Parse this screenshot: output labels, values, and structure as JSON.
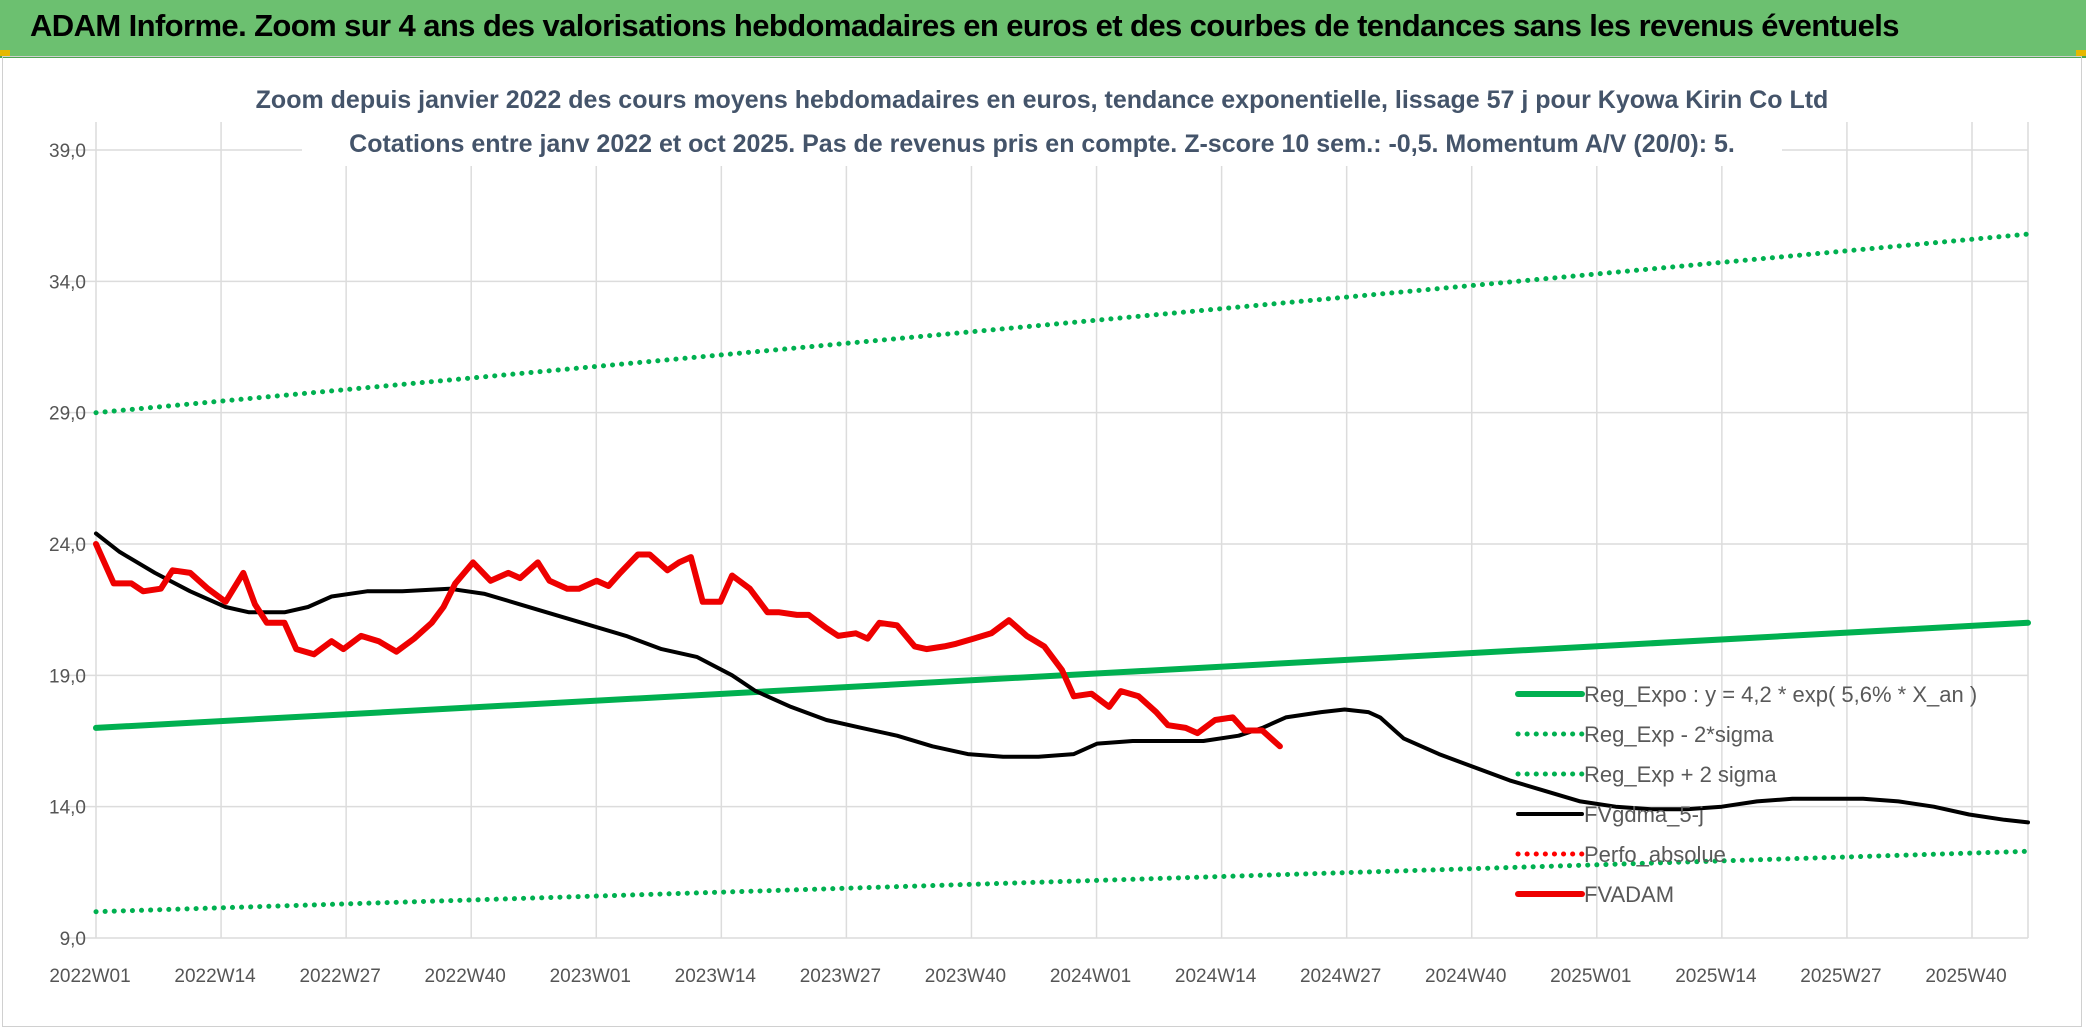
{
  "banner": {
    "title": "ADAM Informe. Zoom sur 4 ans des valorisations hebdomadaires en euros et des courbes de tendances sans les revenus éventuels"
  },
  "chart_data": {
    "type": "line",
    "title": "Zoom depuis janvier 2022 des cours moyens hebdomadaires en euros, tendance exponentielle, lissage 57 j pour Kyowa Kirin Co Ltd",
    "subtitle": "Cotations entre janv 2022 et oct 2025. Pas de revenus pris en compte. Z-score 10 sem.: -0,5. Momentum A/V (20/0): 5.",
    "xlabel": "",
    "ylabel": "",
    "ylim": [
      9.0,
      39.0
    ],
    "yticks": [
      "9,0",
      "14,0",
      "19,0",
      "24,0",
      "29,0",
      "34,0",
      "39,0"
    ],
    "x_tick_labels": [
      "2022W01",
      "2022W14",
      "2022W27",
      "2022W40",
      "2023W01",
      "2023W14",
      "2023W27",
      "2023W40",
      "2024W01",
      "2024W14",
      "2024W27",
      "2024W40",
      "2025W01",
      "2025W14",
      "2025W27",
      "2025W40"
    ],
    "x_tick_step_weeks": 13,
    "weeks_total": 202,
    "grid": true,
    "legend_position": "right",
    "series": [
      {
        "name": "Reg_Expo : y = 4,2 * exp( 5,6% *  X_an )",
        "color": "#00b050",
        "style": "solid",
        "points": [
          [
            0,
            17.0
          ],
          [
            202,
            21.0
          ]
        ]
      },
      {
        "name": "Reg_Exp - 2*sigma",
        "color": "#00b050",
        "style": "dotted",
        "points": [
          [
            0,
            10.0
          ],
          [
            202,
            12.3
          ]
        ]
      },
      {
        "name": "Reg_Exp + 2 sigma",
        "color": "#00b050",
        "style": "dotted",
        "points": [
          [
            0,
            29.0
          ],
          [
            202,
            35.8
          ]
        ]
      },
      {
        "name": "FVgdma_5-j",
        "color": "#000000",
        "style": "solid",
        "points": [
          [
            0,
            24.4
          ],
          [
            4,
            23.7
          ],
          [
            10,
            22.9
          ],
          [
            16,
            22.2
          ],
          [
            22,
            21.6
          ],
          [
            26,
            21.4
          ],
          [
            32,
            21.4
          ],
          [
            36,
            21.6
          ],
          [
            40,
            22.0
          ],
          [
            46,
            22.2
          ],
          [
            52,
            22.2
          ],
          [
            60,
            22.3
          ],
          [
            66,
            22.1
          ],
          [
            72,
            21.7
          ],
          [
            78,
            21.3
          ],
          [
            84,
            20.9
          ],
          [
            90,
            20.5
          ],
          [
            96,
            20.0
          ],
          [
            102,
            19.7
          ],
          [
            108,
            19.0
          ],
          [
            112,
            18.4
          ],
          [
            118,
            17.8
          ],
          [
            124,
            17.3
          ],
          [
            130,
            17.0
          ],
          [
            136,
            16.7
          ],
          [
            142,
            16.3
          ],
          [
            148,
            16.0
          ],
          [
            154,
            15.9
          ],
          [
            160,
            15.9
          ],
          [
            166,
            16.0
          ],
          [
            170,
            16.4
          ],
          [
            176,
            16.5
          ],
          [
            182,
            16.5
          ],
          [
            188,
            16.5
          ],
          [
            194,
            16.7
          ],
          [
            198,
            17.0
          ],
          [
            202,
            17.4
          ],
          [
            208,
            17.6
          ],
          [
            212,
            17.7
          ],
          [
            216,
            17.6
          ],
          [
            218,
            17.4
          ],
          [
            222,
            16.6
          ],
          [
            228,
            16.0
          ],
          [
            234,
            15.5
          ],
          [
            240,
            15.0
          ],
          [
            246,
            14.6
          ],
          [
            252,
            14.2
          ],
          [
            258,
            14.0
          ],
          [
            264,
            13.9
          ],
          [
            270,
            13.9
          ],
          [
            276,
            14.0
          ],
          [
            282,
            14.2
          ],
          [
            288,
            14.3
          ],
          [
            294,
            14.3
          ],
          [
            300,
            14.3
          ],
          [
            306,
            14.2
          ],
          [
            312,
            14.0
          ],
          [
            318,
            13.7
          ],
          [
            324,
            13.5
          ],
          [
            328,
            13.4
          ]
        ]
      },
      {
        "name": "Perfo_absolue",
        "color": "#ff0000",
        "style": "dotted",
        "points": []
      },
      {
        "name": "FVADAM",
        "color": "#ee0000",
        "style": "solid",
        "points": [
          [
            0,
            24.0
          ],
          [
            3,
            22.5
          ],
          [
            6,
            22.5
          ],
          [
            8,
            22.2
          ],
          [
            11,
            22.3
          ],
          [
            13,
            23.0
          ],
          [
            16,
            22.9
          ],
          [
            19,
            22.3
          ],
          [
            22,
            21.8
          ],
          [
            25,
            22.9
          ],
          [
            27,
            21.7
          ],
          [
            29,
            21.0
          ],
          [
            32,
            21.0
          ],
          [
            34,
            20.0
          ],
          [
            37,
            19.8
          ],
          [
            40,
            20.3
          ],
          [
            42,
            20.0
          ],
          [
            45,
            20.5
          ],
          [
            48,
            20.3
          ],
          [
            51,
            19.9
          ],
          [
            54,
            20.4
          ],
          [
            57,
            21.0
          ],
          [
            59,
            21.6
          ],
          [
            61,
            22.5
          ],
          [
            64,
            23.3
          ],
          [
            67,
            22.6
          ],
          [
            70,
            22.9
          ],
          [
            72,
            22.7
          ],
          [
            75,
            23.3
          ],
          [
            77,
            22.6
          ],
          [
            80,
            22.3
          ],
          [
            82,
            22.3
          ],
          [
            85,
            22.6
          ],
          [
            87,
            22.4
          ],
          [
            89,
            22.9
          ],
          [
            92,
            23.6
          ],
          [
            94,
            23.6
          ],
          [
            97,
            23.0
          ],
          [
            99,
            23.3
          ],
          [
            101,
            23.5
          ],
          [
            103,
            21.8
          ],
          [
            106,
            21.8
          ],
          [
            108,
            22.8
          ],
          [
            111,
            22.3
          ],
          [
            114,
            21.4
          ],
          [
            116,
            21.4
          ],
          [
            119,
            21.3
          ],
          [
            121,
            21.3
          ],
          [
            124,
            20.8
          ],
          [
            126,
            20.5
          ],
          [
            129,
            20.6
          ],
          [
            131,
            20.4
          ],
          [
            133,
            21.0
          ],
          [
            136,
            20.9
          ],
          [
            139,
            20.1
          ],
          [
            141,
            20.0
          ],
          [
            144,
            20.1
          ],
          [
            146,
            20.2
          ],
          [
            149,
            20.4
          ],
          [
            152,
            20.6
          ],
          [
            155,
            21.1
          ],
          [
            158,
            20.5
          ],
          [
            161,
            20.1
          ],
          [
            164,
            19.2
          ],
          [
            166,
            18.2
          ],
          [
            169,
            18.3
          ],
          [
            172,
            17.8
          ],
          [
            174,
            18.4
          ],
          [
            177,
            18.2
          ],
          [
            180,
            17.6
          ],
          [
            182,
            17.1
          ],
          [
            185,
            17.0
          ],
          [
            187,
            16.8
          ],
          [
            190,
            17.3
          ],
          [
            193,
            17.4
          ],
          [
            195,
            16.9
          ],
          [
            198,
            16.9
          ],
          [
            201,
            16.3
          ]
        ]
      }
    ]
  }
}
